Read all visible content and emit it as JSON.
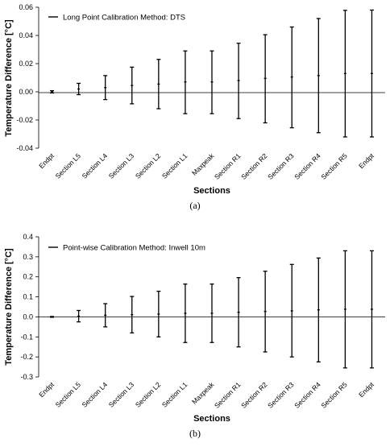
{
  "chart_data": [
    {
      "type": "errorbar",
      "caption": "(a)",
      "xlabel": "Sections",
      "ylabel": "Temperature Difference [°C]",
      "ylim": [
        -0.04,
        0.06
      ],
      "yticks": [
        -0.04,
        -0.02,
        0.0,
        0.02,
        0.04,
        0.06
      ],
      "ytick_labels": [
        "-0.04",
        "-0.02",
        "0.00",
        "0.02",
        "0.04",
        "0.06"
      ],
      "legend": "Long Point Calibration Method: DTS",
      "legend_position": "top-left",
      "grid": false,
      "categories": [
        "Endpt",
        "Section L5",
        "Section L4",
        "Section L3",
        "Section L2",
        "Section L1",
        "Maxpeak",
        "Section R1",
        "Section R2",
        "Section R3",
        "Section R4",
        "Section R5",
        "Endpt"
      ],
      "series": [
        {
          "center": [
            0.0,
            0.002,
            0.003,
            0.0045,
            0.0055,
            0.007,
            0.007,
            0.008,
            0.0095,
            0.0105,
            0.0115,
            0.013,
            0.013
          ],
          "lower": [
            -0.0008,
            -0.002,
            -0.0055,
            -0.0085,
            -0.012,
            -0.0155,
            -0.0155,
            -0.019,
            -0.022,
            -0.0255,
            -0.029,
            -0.032,
            -0.032
          ],
          "upper": [
            0.0008,
            0.006,
            0.0115,
            0.0175,
            0.023,
            0.029,
            0.029,
            0.0345,
            0.0405,
            0.046,
            0.052,
            0.0578,
            0.058
          ]
        }
      ]
    },
    {
      "type": "errorbar",
      "caption": "(b)",
      "xlabel": "Sections",
      "ylabel": "Temperature Difference [°C]",
      "ylim": [
        -0.3,
        0.4
      ],
      "yticks": [
        -0.3,
        -0.2,
        -0.1,
        0.0,
        0.1,
        0.2,
        0.3,
        0.4
      ],
      "ytick_labels": [
        "-0.3",
        "-0.2",
        "-0.1",
        "0.0",
        "0.1",
        "0.2",
        "0.3",
        "0.4"
      ],
      "legend": "Point-wise Calibration Method: Inwell 10m",
      "legend_position": "top-left",
      "grid": false,
      "categories": [
        "Endpt",
        "Section L5",
        "Section L4",
        "Section L3",
        "Section L2",
        "Section L1",
        "Maxpeak",
        "Section R1",
        "Section R2",
        "Section R3",
        "Section R4",
        "Section R5",
        "Endpt"
      ],
      "series": [
        {
          "center": [
            0.0,
            0.0035,
            0.008,
            0.011,
            0.014,
            0.018,
            0.018,
            0.023,
            0.027,
            0.03,
            0.035,
            0.038,
            0.038
          ],
          "lower": [
            -0.002,
            -0.025,
            -0.05,
            -0.08,
            -0.1,
            -0.128,
            -0.128,
            -0.15,
            -0.175,
            -0.2,
            -0.225,
            -0.255,
            -0.255
          ],
          "upper": [
            0.002,
            0.032,
            0.066,
            0.102,
            0.128,
            0.164,
            0.164,
            0.196,
            0.228,
            0.262,
            0.294,
            0.33,
            0.33
          ]
        }
      ]
    }
  ]
}
